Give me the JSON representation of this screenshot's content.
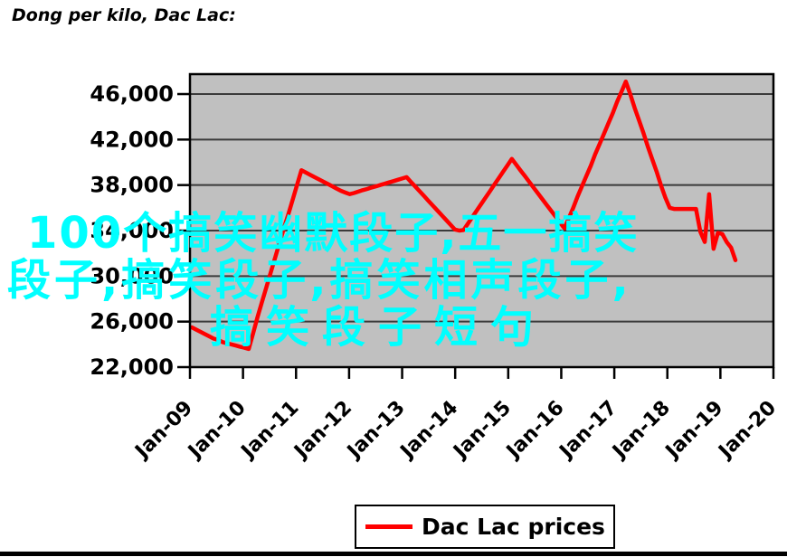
{
  "title": "Dong per kilo, Dac Lac:",
  "watermark": {
    "color": "#00ffff",
    "lines": [
      "100个搞笑幽默段子,五一搞笑",
      "段子,搞笑段子,搞笑相声段子,",
      "搞笑段子短句"
    ]
  },
  "legend": {
    "label": "Dac Lac prices",
    "line_color": "#ff0000"
  },
  "chart_data": {
    "type": "line",
    "title": "Dong per kilo, Dac Lac:",
    "xlabel": "",
    "ylabel": "",
    "plot_bg": "#c0c0c0",
    "grid": true,
    "grid_color": "#3a3a3a",
    "legend_position": "bottom",
    "ylim": [
      22000,
      47750
    ],
    "y_ticks": [
      22000,
      26000,
      30000,
      34000,
      38000,
      42000,
      46000
    ],
    "y_tick_labels": [
      "22,000",
      "26,000",
      "30,000",
      "34,000",
      "38,000",
      "42,000",
      "46,000"
    ],
    "x_tick_labels": [
      "Jan-09",
      "Jan-10",
      "Jan-11",
      "Jan-12",
      "Jan-13",
      "Jan-14",
      "Jan-15",
      "Jan-16",
      "Jan-17",
      "Jan-18",
      "Jan-19",
      "Jan-20"
    ],
    "series": [
      {
        "name": "Dac Lac prices",
        "color": "#ff0000",
        "x": [
          "Jan-09",
          "Feb-09",
          "Mar-09",
          "Apr-09",
          "May-09",
          "Jun-09",
          "Jul-09",
          "Aug-09",
          "Sep-09",
          "Oct-09",
          "Nov-09",
          "Dec-09",
          "Jan-10",
          "Feb-10",
          "Mar-10",
          "Apr-10",
          "May-10",
          "Jun-10",
          "Jul-10",
          "Aug-10",
          "Sep-10",
          "Oct-10",
          "Nov-10",
          "Dec-10",
          "Jan-11",
          "Feb-11",
          "Mar-11",
          "Apr-11",
          "May-11",
          "Jun-11",
          "Jul-11",
          "Aug-11",
          "Sep-11",
          "Oct-11",
          "Nov-11",
          "Dec-11",
          "Jan-12",
          "Feb-12",
          "Mar-12",
          "Apr-12",
          "May-12",
          "Jun-12",
          "Jul-12",
          "Aug-12",
          "Sep-12",
          "Oct-12",
          "Nov-12",
          "Dec-12",
          "Jan-13",
          "Feb-13",
          "Mar-13",
          "Apr-13",
          "May-13",
          "Jun-13",
          "Jul-13",
          "Aug-13",
          "Sep-13",
          "Oct-13",
          "Nov-13",
          "Dec-13",
          "Jan-14",
          "Feb-14",
          "Mar-14",
          "Apr-14",
          "May-14",
          "Jun-14",
          "Jul-14",
          "Aug-14",
          "Sep-14",
          "Oct-14",
          "Nov-14",
          "Dec-14",
          "Jan-15",
          "Feb-15",
          "Mar-15",
          "Apr-15",
          "May-15",
          "Jun-15",
          "Jul-15",
          "Aug-15",
          "Sep-15",
          "Oct-15",
          "Nov-15",
          "Dec-15",
          "Jan-16",
          "Feb-16",
          "Mar-16",
          "Apr-16",
          "May-16",
          "Jun-16",
          "Jul-16",
          "Aug-16",
          "Sep-16",
          "Oct-16",
          "Nov-16",
          "Dec-16",
          "Jan-17",
          "Feb-17",
          "Mar-17",
          "Apr-17",
          "May-17",
          "Jun-17",
          "Jul-17",
          "Aug-17",
          "Sep-17",
          "Oct-17",
          "Nov-17",
          "Dec-17",
          "Jan-18",
          "Feb-18",
          "Mar-18",
          "Apr-18",
          "May-18",
          "Jun-18",
          "Jul-18",
          "Aug-18",
          "Sep-18",
          "Oct-18",
          "Nov-18",
          "Dec-18",
          "Jan-19",
          "Feb-19",
          "Mar-19",
          "Apr-19",
          "May-19"
        ],
        "values": [
          25500,
          25300,
          25100,
          24900,
          24700,
          24500,
          24400,
          24200,
          24100,
          24000,
          23900,
          23800,
          23700,
          23600,
          25000,
          26400,
          27700,
          29000,
          30300,
          31600,
          32900,
          34200,
          35400,
          36700,
          38000,
          39300,
          39100,
          38900,
          38700,
          38500,
          38300,
          38100,
          37900,
          37700,
          37500,
          37350,
          37200,
          37300,
          37430,
          37550,
          37660,
          37780,
          37890,
          38010,
          38120,
          38240,
          38350,
          38470,
          38580,
          38700,
          38280,
          37860,
          37450,
          37030,
          36610,
          36190,
          35770,
          35350,
          34940,
          34520,
          34100,
          34000,
          34050,
          34620,
          35190,
          35760,
          36330,
          36890,
          37460,
          38030,
          38600,
          39170,
          39730,
          40300,
          39790,
          39280,
          38780,
          38270,
          37760,
          37250,
          36740,
          36230,
          35730,
          35220,
          34700,
          34200,
          35100,
          36000,
          37000,
          37900,
          38800,
          39700,
          40700,
          41600,
          42500,
          43400,
          44300,
          45300,
          46200,
          47100,
          46000,
          44800,
          43700,
          42600,
          41400,
          40300,
          39200,
          38000,
          36900,
          36000,
          35900,
          35900,
          35900,
          35900,
          35900,
          35900,
          33900,
          33000,
          37200,
          32400,
          33800,
          33700,
          33000,
          32500,
          31400
        ]
      }
    ]
  }
}
